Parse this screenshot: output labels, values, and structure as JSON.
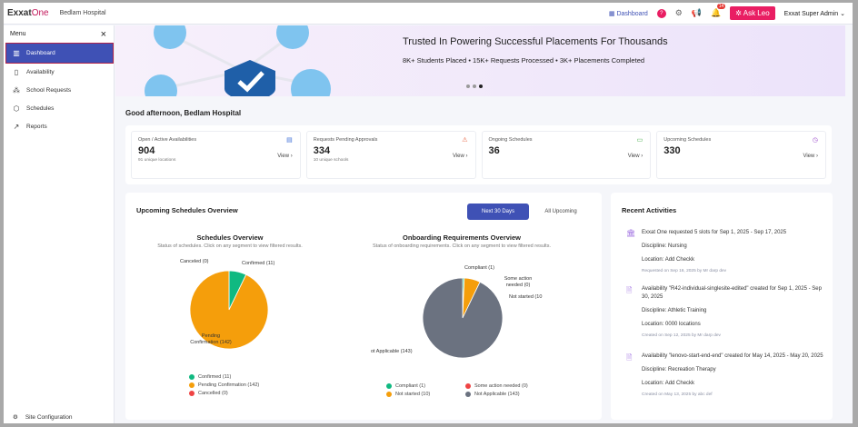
{
  "header": {
    "logo": "Exxat",
    "logo_accent": "One",
    "org": "Bedlam Hospital",
    "dashboard_link": "Dashboard",
    "help_badge": "?",
    "notification_count": "14",
    "ask_button": "Ask Leo",
    "user": "Exxat Super Admin"
  },
  "sidebar": {
    "title": "Menu",
    "items": [
      {
        "label": "Dashboard",
        "icon": "bar-chart-icon",
        "active": true
      },
      {
        "label": "Availability",
        "icon": "document-icon"
      },
      {
        "label": "School Requests",
        "icon": "network-icon"
      },
      {
        "label": "Schedules",
        "icon": "box-icon"
      },
      {
        "label": "Reports",
        "icon": "trend-icon"
      }
    ],
    "footer": "Site Configuration"
  },
  "banner": {
    "title": "Trusted In Powering Successful Placements For Thousands",
    "stats": "8K+ Students Placed  •  15K+ Requests Processed  •  3K+ Placements Completed",
    "slides": 3,
    "active_slide": 3
  },
  "greeting": "Good afternoon, Bedlam Hospital",
  "cards": [
    {
      "title": "Open / Active Availabilities",
      "value": "904",
      "sub": "91 unique locations",
      "view": "View ›",
      "icon": "document-icon",
      "color": "#3f6fd8"
    },
    {
      "title": "Requests Pending Approvals",
      "value": "334",
      "sub": "10 unique schools",
      "view": "View ›",
      "icon": "warning-icon",
      "color": "#e8603c"
    },
    {
      "title": "Ongoing Schedules",
      "value": "36",
      "sub": "",
      "view": "View ›",
      "icon": "calendar-icon",
      "color": "#4caf50"
    },
    {
      "title": "Upcoming Schedules",
      "value": "330",
      "sub": "",
      "view": "View ›",
      "icon": "clock-icon",
      "color": "#9c4dcc"
    }
  ],
  "overview": {
    "title": "Upcoming Schedules Overview",
    "tabs": [
      "Next 30 Days",
      "All Upcoming"
    ],
    "active_tab": 0
  },
  "chart_data": [
    {
      "type": "pie",
      "title": "Schedules Overview",
      "subtitle": "Status of schedules. Click on any segment to view filtered results.",
      "slices": [
        {
          "name": "Confirmed",
          "value": 11,
          "color": "#10b981"
        },
        {
          "name": "Pending Confirmation",
          "value": 142,
          "color": "#f59e0b"
        },
        {
          "name": "Cancelled",
          "value": 0,
          "color": "#ef4444"
        }
      ],
      "labels": {
        "cancelled": "Canceled (0)",
        "confirmed": "Confirmed (11)",
        "pending": "Pending Confirmation (142)"
      },
      "legend": [
        "Confirmed (11)",
        "Pending Confirmation (142)",
        "Cancelled (0)"
      ]
    },
    {
      "type": "pie",
      "title": "Onboarding Requirements Overview",
      "subtitle": "Status of onboarding requirements. Click on any segment to view filtered results.",
      "slices": [
        {
          "name": "Compliant",
          "value": 1,
          "color": "#10b981"
        },
        {
          "name": "Some action needed",
          "value": 0,
          "color": "#ef4444"
        },
        {
          "name": "Not started",
          "value": 10,
          "color": "#f59e0b"
        },
        {
          "name": "Not Applicable",
          "value": 143,
          "color": "#6b7280"
        }
      ],
      "labels": {
        "compliant": "Compliant (1)",
        "action": "Some action needed (0)",
        "notstarted": "Not started (10",
        "na": "ot Applicable (143)"
      },
      "legend": [
        "Compliant (1)",
        "Some action needed (0)",
        "Not started (10)",
        "Not Applicable (143)"
      ]
    }
  ],
  "activities": {
    "title": "Recent Activities",
    "items": [
      {
        "icon": "building-icon",
        "text": "Exxat One requested 5 slots for Sep 1, 2025 - Sep 17, 2025",
        "discipline": "Discipline:   Nursing",
        "location": "Location:   Add Checkk",
        "meta": "Requested on Sep 16, 2025 by Mr darp dev"
      },
      {
        "icon": "file-icon",
        "text": "Availability \"R42-individual-singlesite-edited\" created for Sep 1, 2025 - Sep 30, 2025",
        "discipline": "Discipline:   Athletic Training",
        "location": "Location:   0000 locations",
        "meta": "Created on Sep 12, 2025 by Mr darp dev"
      },
      {
        "icon": "file-icon",
        "text": "Availability \"lenovo-start-end-end\" created for May 14, 2025 - May 20, 2025",
        "discipline": "Discipline:   Recreation Therapy",
        "location": "Location:   Add Checkk",
        "meta": "Created on May 13, 2025 by abc def"
      }
    ]
  }
}
